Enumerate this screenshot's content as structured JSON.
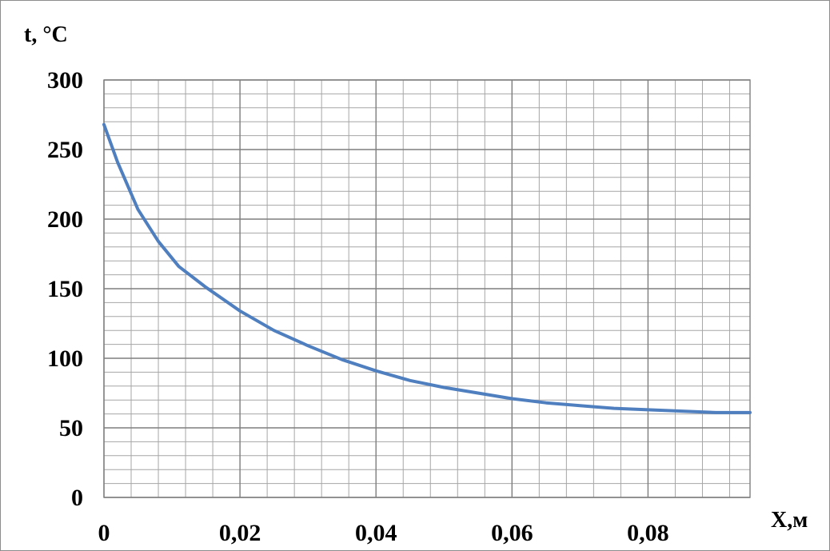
{
  "chart_data": {
    "type": "line",
    "title": "",
    "ylabel": "t, °C",
    "xlabel": "X,м",
    "xlim": [
      0,
      0.095
    ],
    "ylim": [
      0,
      300
    ],
    "x_ticks": [
      0,
      0.02,
      0.04,
      0.06,
      0.08
    ],
    "x_tick_labels": [
      "0",
      "0,02",
      "0,04",
      "0,06",
      "0,08"
    ],
    "y_ticks": [
      0,
      50,
      100,
      150,
      200,
      250,
      300
    ],
    "y_tick_labels": [
      "0",
      "50",
      "100",
      "150",
      "200",
      "250",
      "300"
    ],
    "x_minor_step": 0.004,
    "y_minor_step": 10,
    "grid": true,
    "legend": "none",
    "line_color": "#4f7fbf",
    "series": [
      {
        "x": [
          0,
          0.002,
          0.005,
          0.008,
          0.011,
          0.015,
          0.02,
          0.025,
          0.03,
          0.035,
          0.04,
          0.045,
          0.05,
          0.055,
          0.06,
          0.065,
          0.07,
          0.075,
          0.08,
          0.085,
          0.09,
          0.095
        ],
        "values": [
          268,
          241,
          207,
          184,
          166,
          151,
          134,
          120,
          109,
          99,
          91,
          84,
          79,
          75,
          71,
          68,
          66,
          64,
          63,
          62,
          61,
          61
        ]
      }
    ]
  }
}
